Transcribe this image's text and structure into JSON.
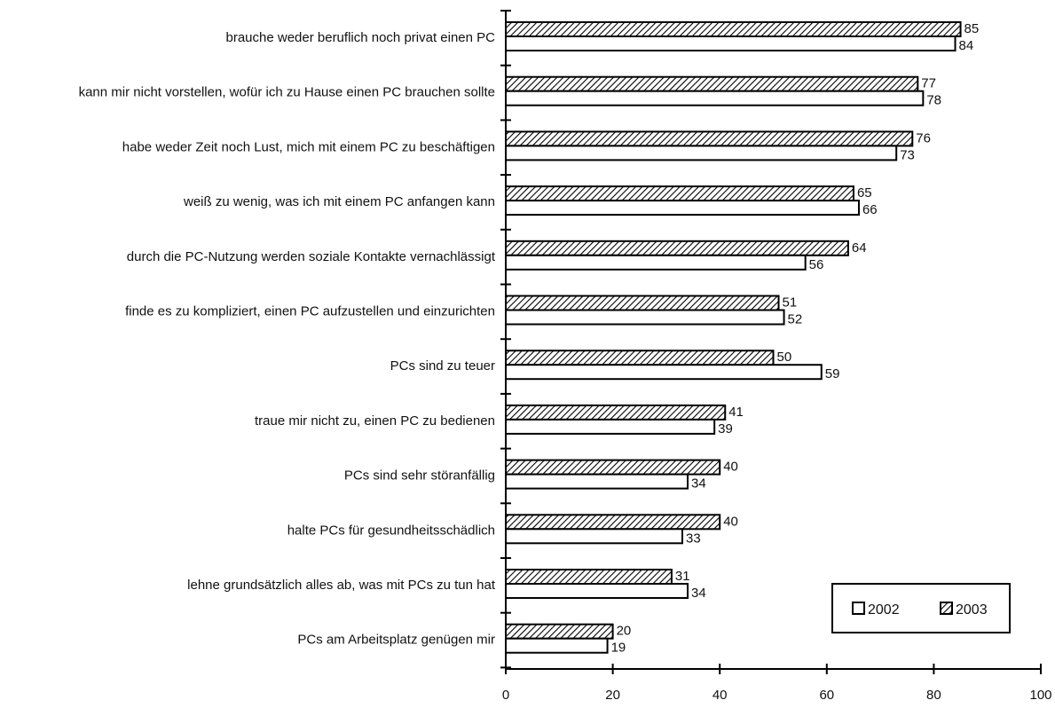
{
  "chart_data": {
    "type": "bar",
    "orientation": "horizontal",
    "categories": [
      "brauche weder beruflich noch privat einen PC",
      "kann mir nicht vorstellen, wofür ich zu Hause einen PC brauchen sollte",
      "habe weder Zeit noch Lust, mich mit einem PC zu beschäftigen",
      "weiß zu wenig, was ich mit einem PC anfangen kann",
      "durch die PC-Nutzung werden soziale Kontakte vernachlässigt",
      "finde es zu kompliziert, einen PC aufzustellen und einzurichten",
      "PCs sind zu teuer",
      "traue mir nicht zu, einen PC zu bedienen",
      "PCs sind sehr störanfällig",
      "halte PCs für gesundheitsschädlich",
      "lehne grundsätzlich alles ab, was mit PCs zu tun hat",
      "PCs am Arbeitsplatz genügen mir"
    ],
    "series": [
      {
        "name": "2003",
        "pattern": "hatched",
        "values": [
          85,
          77,
          76,
          65,
          64,
          51,
          50,
          41,
          40,
          40,
          31,
          20
        ]
      },
      {
        "name": "2002",
        "pattern": "white",
        "values": [
          84,
          78,
          73,
          66,
          56,
          52,
          59,
          39,
          34,
          33,
          34,
          19
        ]
      }
    ],
    "xlim": [
      0,
      100
    ],
    "xticks": [
      0,
      20,
      40,
      60,
      80,
      100
    ],
    "legend": {
      "entries": [
        "2002",
        "2003"
      ],
      "placement": "bottom-right"
    },
    "grid": false,
    "colors": {
      "bar_stroke": "#000000",
      "hatch": "#000000",
      "plain_fill": "#ffffff"
    }
  }
}
